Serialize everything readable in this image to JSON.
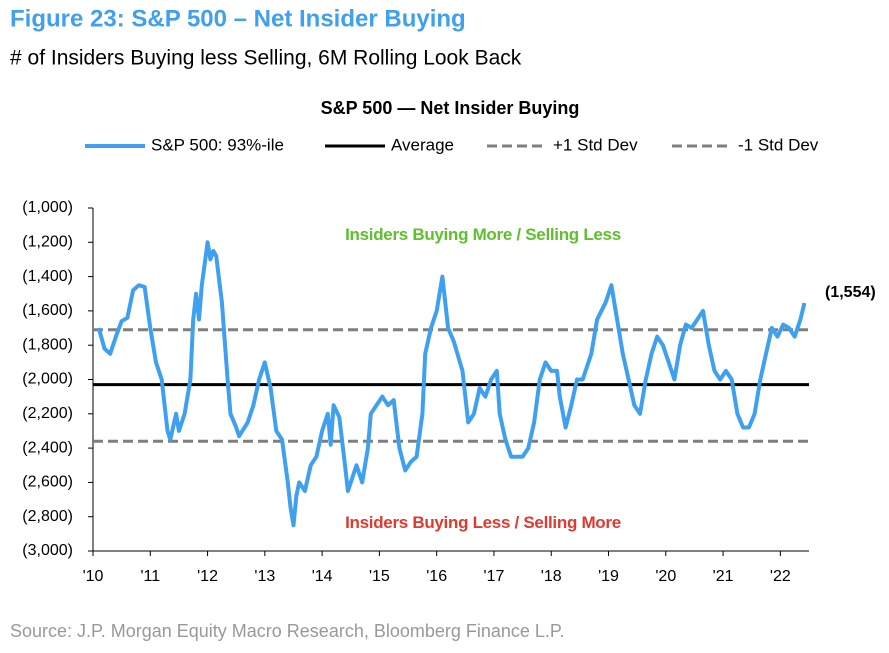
{
  "chart_data": {
    "type": "line",
    "title": "Figure 23: S&P 500 – Net Insider Buying",
    "subtitle": "# of Insiders Buying less Selling, 6M Rolling Look Back",
    "chart_title": "S&P 500 — Net Insider Buying",
    "source": "Source: J.P. Morgan Equity Macro Research, Bloomberg Finance L.P.",
    "annotations": [
      {
        "text": "Insiders Buying More / Selling Less",
        "color": "#5dc02c"
      },
      {
        "text": "Insiders Buying Less / Selling More",
        "color": "#e0392f"
      }
    ],
    "end_label": "(1,554)",
    "xlim": [
      2010,
      2022.5
    ],
    "xticks": [
      {
        "value": 2010,
        "label": "'10"
      },
      {
        "value": 2011,
        "label": "'11"
      },
      {
        "value": 2012,
        "label": "'12"
      },
      {
        "value": 2013,
        "label": "'13"
      },
      {
        "value": 2014,
        "label": "'14"
      },
      {
        "value": 2015,
        "label": "'15"
      },
      {
        "value": 2016,
        "label": "'16"
      },
      {
        "value": 2017,
        "label": "'17"
      },
      {
        "value": 2018,
        "label": "'18"
      },
      {
        "value": 2019,
        "label": "'19"
      },
      {
        "value": 2020,
        "label": "'20"
      },
      {
        "value": 2021,
        "label": "'21"
      },
      {
        "value": 2022,
        "label": "'22"
      }
    ],
    "ylim": [
      -3000,
      -1000
    ],
    "yticks": [
      {
        "value": -1000,
        "label": "(1,000)"
      },
      {
        "value": -1200,
        "label": "(1,200)"
      },
      {
        "value": -1400,
        "label": "(1,400)"
      },
      {
        "value": -1600,
        "label": "(1,600)"
      },
      {
        "value": -1800,
        "label": "(1,800)"
      },
      {
        "value": -2000,
        "label": "(2,000)"
      },
      {
        "value": -2200,
        "label": "(2,200)"
      },
      {
        "value": -2400,
        "label": "(2,400)"
      },
      {
        "value": -2600,
        "label": "(2,600)"
      },
      {
        "value": -2800,
        "label": "(2,800)"
      },
      {
        "value": -3000,
        "label": "(3,000)"
      }
    ],
    "reference_lines": [
      {
        "name": "Average",
        "value": -2030,
        "color": "#000000",
        "dashed": false
      },
      {
        "name": "+1 Std Dev",
        "value": -1710,
        "color": "#7f7f7f",
        "dashed": true
      },
      {
        "name": "-1 Std Dev",
        "value": -2360,
        "color": "#7f7f7f",
        "dashed": true
      }
    ],
    "series": [
      {
        "name": "S&P 500: 93%-ile",
        "color": "#3fa0f0",
        "x": [
          2010.1,
          2010.2,
          2010.3,
          2010.4,
          2010.5,
          2010.6,
          2010.7,
          2010.8,
          2010.9,
          2011.0,
          2011.1,
          2011.2,
          2011.3,
          2011.35,
          2011.45,
          2011.5,
          2011.6,
          2011.7,
          2011.75,
          2011.8,
          2011.85,
          2011.9,
          2012.0,
          2012.05,
          2012.1,
          2012.15,
          2012.25,
          2012.35,
          2012.4,
          2012.5,
          2012.55,
          2012.7,
          2012.8,
          2012.9,
          2013.0,
          2013.1,
          2013.2,
          2013.3,
          2013.4,
          2013.45,
          2013.5,
          2013.55,
          2013.6,
          2013.7,
          2013.8,
          2013.9,
          2014.0,
          2014.1,
          2014.15,
          2014.2,
          2014.3,
          2014.4,
          2014.45,
          2014.5,
          2014.6,
          2014.7,
          2014.8,
          2014.85,
          2014.95,
          2015.05,
          2015.15,
          2015.25,
          2015.35,
          2015.45,
          2015.55,
          2015.65,
          2015.75,
          2015.8,
          2015.9,
          2016.0,
          2016.05,
          2016.1,
          2016.2,
          2016.3,
          2016.45,
          2016.55,
          2016.65,
          2016.75,
          2016.85,
          2016.95,
          2017.05,
          2017.1,
          2017.2,
          2017.3,
          2017.5,
          2017.6,
          2017.7,
          2017.8,
          2017.9,
          2018.0,
          2018.1,
          2018.15,
          2018.25,
          2018.35,
          2018.45,
          2018.55,
          2018.7,
          2018.8,
          2018.95,
          2019.05,
          2019.15,
          2019.25,
          2019.35,
          2019.45,
          2019.55,
          2019.65,
          2019.75,
          2019.85,
          2019.95,
          2020.05,
          2020.15,
          2020.25,
          2020.35,
          2020.45,
          2020.55,
          2020.65,
          2020.75,
          2020.85,
          2020.95,
          2021.05,
          2021.15,
          2021.25,
          2021.35,
          2021.45,
          2021.55,
          2021.65,
          2021.75,
          2021.85,
          2021.95,
          2022.05,
          2022.15,
          2022.25,
          2022.35,
          2022.42
        ],
        "values": [
          -1700,
          -1820,
          -1850,
          -1750,
          -1660,
          -1640,
          -1480,
          -1450,
          -1460,
          -1700,
          -1900,
          -2000,
          -2300,
          -2350,
          -2200,
          -2300,
          -2200,
          -2000,
          -1650,
          -1500,
          -1650,
          -1450,
          -1200,
          -1300,
          -1250,
          -1280,
          -1550,
          -2000,
          -2200,
          -2280,
          -2330,
          -2250,
          -2150,
          -2000,
          -1900,
          -2050,
          -2300,
          -2350,
          -2600,
          -2750,
          -2850,
          -2680,
          -2600,
          -2650,
          -2500,
          -2450,
          -2300,
          -2200,
          -2380,
          -2150,
          -2220,
          -2500,
          -2650,
          -2600,
          -2500,
          -2600,
          -2400,
          -2200,
          -2150,
          -2100,
          -2150,
          -2120,
          -2400,
          -2530,
          -2480,
          -2450,
          -2200,
          -1850,
          -1700,
          -1600,
          -1500,
          -1400,
          -1700,
          -1780,
          -1950,
          -2250,
          -2200,
          -2050,
          -2100,
          -2000,
          -1950,
          -2200,
          -2350,
          -2450,
          -2450,
          -2400,
          -2250,
          -2000,
          -1900,
          -1950,
          -1950,
          -2100,
          -2280,
          -2150,
          -2000,
          -2000,
          -1850,
          -1650,
          -1550,
          -1450,
          -1650,
          -1850,
          -2000,
          -2150,
          -2200,
          -2000,
          -1850,
          -1750,
          -1800,
          -1900,
          -2000,
          -1800,
          -1680,
          -1700,
          -1650,
          -1600,
          -1800,
          -1950,
          -2000,
          -1950,
          -2000,
          -2200,
          -2280,
          -2280,
          -2200,
          -2000,
          -1850,
          -1700,
          -1750,
          -1680,
          -1700,
          -1750,
          -1650,
          -1554
        ]
      }
    ]
  }
}
